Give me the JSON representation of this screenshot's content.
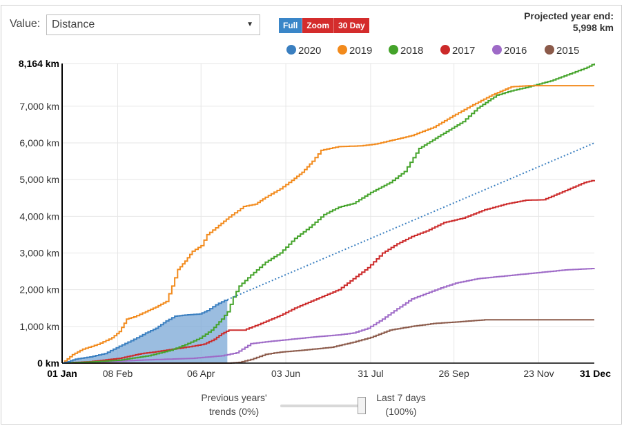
{
  "controls": {
    "value_label": "Value:",
    "selected_value": "Distance",
    "buttons": {
      "full": "Full",
      "zoom": "Zoom",
      "thirty_day": "30 Day"
    }
  },
  "projection": {
    "label": "Projected year end:",
    "value": "5,998 km",
    "value_km": 5998
  },
  "slider": {
    "left_label_1": "Previous years'",
    "left_label_2": "trends (0%)",
    "right_label_1": "Last 7 days",
    "right_label_2": "(100%)",
    "position_percent": 100
  },
  "chart_data": {
    "type": "line",
    "title": "",
    "xlabel": "",
    "ylabel": "",
    "x_unit": "day of year",
    "xlim": [
      1,
      365
    ],
    "ylim": [
      0,
      8164
    ],
    "grid": true,
    "legend_position": "top",
    "y_ticks": [
      {
        "value": 0,
        "label": "0 km",
        "bold": true
      },
      {
        "value": 1000,
        "label": "1,000 km",
        "bold": false
      },
      {
        "value": 2000,
        "label": "2,000 km",
        "bold": false
      },
      {
        "value": 3000,
        "label": "3,000 km",
        "bold": false
      },
      {
        "value": 4000,
        "label": "4,000 km",
        "bold": false
      },
      {
        "value": 5000,
        "label": "5,000 km",
        "bold": false
      },
      {
        "value": 6000,
        "label": "6,000 km",
        "bold": false
      },
      {
        "value": 7000,
        "label": "7,000 km",
        "bold": false
      },
      {
        "value": 8164,
        "label": "8,164 km",
        "bold": true
      }
    ],
    "x_ticks": [
      {
        "day": 1,
        "label": "01 Jan",
        "bold": true
      },
      {
        "day": 39,
        "label": "08 Feb",
        "bold": false
      },
      {
        "day": 96,
        "label": "06 Apr",
        "bold": false
      },
      {
        "day": 154,
        "label": "03 Jun",
        "bold": false
      },
      {
        "day": 212,
        "label": "31 Jul",
        "bold": false
      },
      {
        "day": 269,
        "label": "26 Sep",
        "bold": false
      },
      {
        "day": 327,
        "label": "23 Nov",
        "bold": false
      },
      {
        "day": 365,
        "label": "31 Dec",
        "bold": true
      }
    ],
    "series": [
      {
        "name": "2020",
        "color": "#3a7fc0",
        "filled": true,
        "points": [
          [
            1,
            0
          ],
          [
            5,
            40
          ],
          [
            10,
            110
          ],
          [
            20,
            170
          ],
          [
            30,
            260
          ],
          [
            40,
            460
          ],
          [
            50,
            650
          ],
          [
            58,
            820
          ],
          [
            65,
            950
          ],
          [
            72,
            1150
          ],
          [
            78,
            1280
          ],
          [
            85,
            1310
          ],
          [
            95,
            1340
          ],
          [
            100,
            1430
          ],
          [
            106,
            1590
          ],
          [
            112,
            1710
          ],
          [
            114,
            1730
          ]
        ]
      },
      {
        "name": "2020 projection",
        "color": "#3a7fc0",
        "dashed": true,
        "legend": false,
        "points": [
          [
            114,
            1730
          ],
          [
            365,
            5998
          ]
        ]
      },
      {
        "name": "2019",
        "color": "#f28a1c",
        "points": [
          [
            1,
            0
          ],
          [
            8,
            230
          ],
          [
            15,
            380
          ],
          [
            25,
            510
          ],
          [
            35,
            690
          ],
          [
            40,
            860
          ],
          [
            45,
            1200
          ],
          [
            50,
            1260
          ],
          [
            58,
            1400
          ],
          [
            65,
            1530
          ],
          [
            72,
            1680
          ],
          [
            76,
            2100
          ],
          [
            80,
            2550
          ],
          [
            85,
            2780
          ],
          [
            90,
            3050
          ],
          [
            96,
            3200
          ],
          [
            100,
            3500
          ],
          [
            108,
            3750
          ],
          [
            115,
            3980
          ],
          [
            125,
            4270
          ],
          [
            133,
            4330
          ],
          [
            140,
            4520
          ],
          [
            150,
            4750
          ],
          [
            158,
            4980
          ],
          [
            165,
            5200
          ],
          [
            172,
            5500
          ],
          [
            178,
            5800
          ],
          [
            190,
            5900
          ],
          [
            205,
            5920
          ],
          [
            215,
            5970
          ],
          [
            225,
            6060
          ],
          [
            240,
            6200
          ],
          [
            255,
            6430
          ],
          [
            270,
            6780
          ],
          [
            280,
            7000
          ],
          [
            295,
            7310
          ],
          [
            308,
            7530
          ],
          [
            320,
            7560
          ],
          [
            330,
            7560
          ],
          [
            365,
            7560
          ]
        ]
      },
      {
        "name": "2018",
        "color": "#44a32a",
        "points": [
          [
            1,
            0
          ],
          [
            20,
            30
          ],
          [
            40,
            80
          ],
          [
            60,
            200
          ],
          [
            75,
            350
          ],
          [
            85,
            500
          ],
          [
            95,
            680
          ],
          [
            103,
            900
          ],
          [
            110,
            1200
          ],
          [
            114,
            1400
          ],
          [
            118,
            1800
          ],
          [
            122,
            2100
          ],
          [
            130,
            2400
          ],
          [
            140,
            2750
          ],
          [
            150,
            3000
          ],
          [
            160,
            3400
          ],
          [
            170,
            3700
          ],
          [
            180,
            4050
          ],
          [
            190,
            4250
          ],
          [
            200,
            4350
          ],
          [
            212,
            4650
          ],
          [
            225,
            4920
          ],
          [
            235,
            5220
          ],
          [
            245,
            5850
          ],
          [
            260,
            6220
          ],
          [
            275,
            6580
          ],
          [
            285,
            6950
          ],
          [
            298,
            7300
          ],
          [
            308,
            7420
          ],
          [
            320,
            7530
          ],
          [
            335,
            7690
          ],
          [
            350,
            7910
          ],
          [
            360,
            8060
          ],
          [
            365,
            8164
          ]
        ]
      },
      {
        "name": "2017",
        "color": "#cc2a2a",
        "points": [
          [
            1,
            0
          ],
          [
            20,
            40
          ],
          [
            40,
            130
          ],
          [
            55,
            260
          ],
          [
            65,
            310
          ],
          [
            80,
            400
          ],
          [
            90,
            460
          ],
          [
            98,
            520
          ],
          [
            105,
            650
          ],
          [
            110,
            800
          ],
          [
            115,
            900
          ],
          [
            125,
            900
          ],
          [
            135,
            1050
          ],
          [
            150,
            1300
          ],
          [
            160,
            1500
          ],
          [
            175,
            1750
          ],
          [
            190,
            2000
          ],
          [
            200,
            2300
          ],
          [
            210,
            2600
          ],
          [
            220,
            3000
          ],
          [
            230,
            3250
          ],
          [
            240,
            3450
          ],
          [
            250,
            3600
          ],
          [
            262,
            3830
          ],
          [
            275,
            3950
          ],
          [
            290,
            4180
          ],
          [
            305,
            4340
          ],
          [
            318,
            4440
          ],
          [
            330,
            4450
          ],
          [
            345,
            4700
          ],
          [
            358,
            4920
          ],
          [
            365,
            4990
          ]
        ]
      },
      {
        "name": "2016",
        "color": "#9e6ac7",
        "points": [
          [
            1,
            0
          ],
          [
            30,
            40
          ],
          [
            60,
            90
          ],
          [
            90,
            130
          ],
          [
            110,
            200
          ],
          [
            120,
            280
          ],
          [
            130,
            530
          ],
          [
            140,
            580
          ],
          [
            150,
            620
          ],
          [
            160,
            660
          ],
          [
            175,
            720
          ],
          [
            190,
            770
          ],
          [
            200,
            820
          ],
          [
            210,
            950
          ],
          [
            220,
            1200
          ],
          [
            230,
            1480
          ],
          [
            240,
            1750
          ],
          [
            250,
            1900
          ],
          [
            260,
            2050
          ],
          [
            270,
            2180
          ],
          [
            285,
            2300
          ],
          [
            300,
            2360
          ],
          [
            320,
            2440
          ],
          [
            335,
            2500
          ],
          [
            345,
            2540
          ],
          [
            365,
            2580
          ]
        ]
      },
      {
        "name": "2015",
        "color": "#8b5a4a",
        "points": [
          [
            1,
            0
          ],
          [
            40,
            0
          ],
          [
            80,
            0
          ],
          [
            115,
            0
          ],
          [
            122,
            20
          ],
          [
            130,
            100
          ],
          [
            140,
            240
          ],
          [
            150,
            300
          ],
          [
            165,
            350
          ],
          [
            185,
            430
          ],
          [
            200,
            570
          ],
          [
            212,
            700
          ],
          [
            225,
            900
          ],
          [
            240,
            1000
          ],
          [
            255,
            1080
          ],
          [
            270,
            1120
          ],
          [
            290,
            1180
          ],
          [
            310,
            1180
          ],
          [
            330,
            1180
          ],
          [
            365,
            1180
          ]
        ]
      }
    ]
  }
}
